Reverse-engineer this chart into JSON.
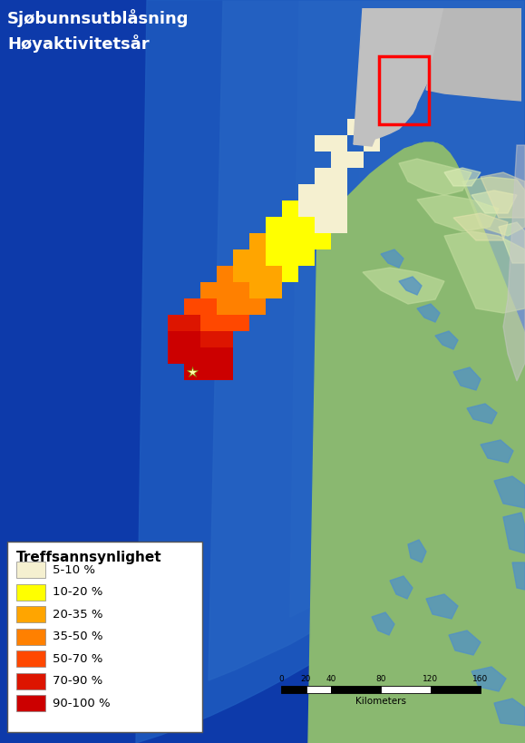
{
  "title_line1": "Sjøbunnsutblåsning",
  "title_line2": "Høyaktivitetsår",
  "title_color": "white",
  "title_fontsize": 13,
  "sea_deep": "#0d3aaa",
  "sea_mid": "#1e5bbf",
  "sea_near_coast": "#4d8fd4",
  "sea_shallow": "#7db8e8",
  "sea_very_shallow": "#aad4f5",
  "land_green": "#8ab870",
  "land_light": "#bdd99a",
  "land_pale": "#deedb8",
  "land_beige": "#e8e4b0",
  "land_grey": "#c8c8c8",
  "fjord_blue": "#5090c8",
  "inset_bg": "#ffffff",
  "inset_water": "#ffffff",
  "inset_land": "#c0c0c0",
  "inset_border": "#999999",
  "legend_title": "Treffsannsynlighet",
  "legend_colors": [
    "#f5f0d0",
    "#ffff00",
    "#ffa500",
    "#ff8000",
    "#ff4800",
    "#dd1500",
    "#cc0000"
  ],
  "legend_labels": [
    "5-10 %",
    "10-20 %",
    "20-35 %",
    "35-50 %",
    "50-70 %",
    "70-90 %",
    "90-100 %"
  ],
  "scale_label": "Kilometers",
  "figsize": [
    5.79,
    8.19
  ],
  "dpi": 100,
  "bg_color": "#1040bb"
}
